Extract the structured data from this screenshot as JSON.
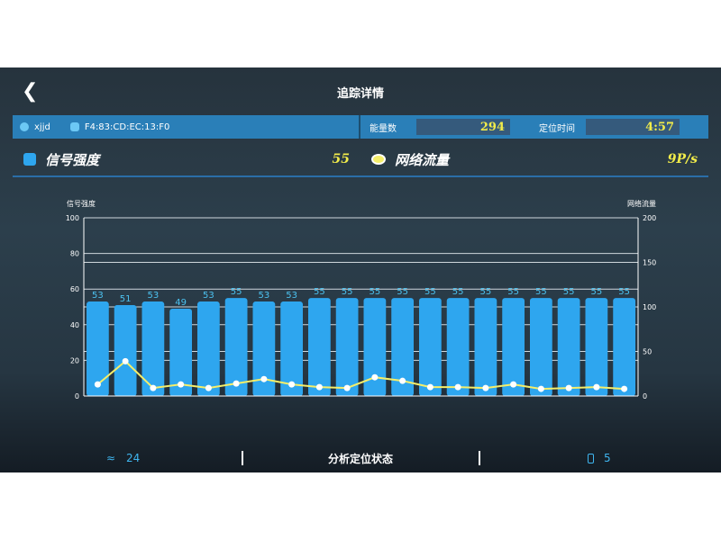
{
  "header": {
    "title": "追踪详情",
    "back_icon": "chevron-left-icon"
  },
  "info": {
    "name": "xjjd",
    "mac": "F4:83:CD:EC:13:F0",
    "energy_label": "能量数",
    "energy_value": "294",
    "time_label": "定位时间",
    "time_value": "4:57"
  },
  "legend": {
    "signal_label": "信号强度",
    "signal_value": "55",
    "traffic_label": "网络流量",
    "traffic_value": "9P/s"
  },
  "colors": {
    "bar": "#2ea6ef",
    "line": "#f5ee6a",
    "accent": "#2a7fb8",
    "value": "#f2ec4a"
  },
  "chart_data": {
    "type": "bar",
    "ylabel": "信号强度",
    "y2label": "网络流量",
    "ylim": [
      0,
      100
    ],
    "y2lim": [
      0,
      200
    ],
    "yticks": [
      "0",
      "20",
      "40",
      "60",
      "80",
      "100"
    ],
    "y2ticks": [
      "0",
      "50",
      "100",
      "150",
      "200"
    ],
    "series": [
      {
        "name": "信号强度",
        "type": "bar",
        "axis": "left",
        "values": [
          53,
          51,
          53,
          49,
          53,
          55,
          53,
          53,
          55,
          55,
          55,
          55,
          55,
          55,
          55,
          55,
          55,
          55,
          55,
          55
        ]
      },
      {
        "name": "网络流量",
        "type": "line",
        "axis": "right",
        "values": [
          13,
          39,
          9,
          13,
          9,
          14,
          19,
          13,
          10,
          9,
          21,
          17,
          10,
          10,
          9,
          13,
          8,
          9,
          10,
          8
        ]
      }
    ]
  },
  "footer": {
    "wifi_count": "24",
    "center_label": "分析定位状态",
    "device_count": "5"
  }
}
